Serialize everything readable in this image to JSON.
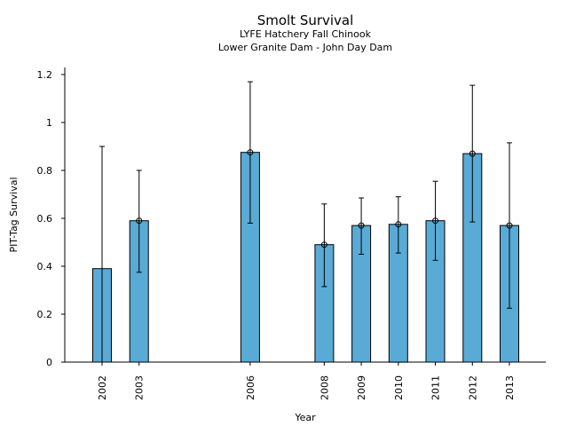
{
  "chart_data": {
    "type": "bar",
    "title": "Smolt Survival",
    "subtitle_lines": [
      "LYFE Hatchery Fall Chinook",
      "Lower Granite Dam - John Day Dam"
    ],
    "xlabel": "Year",
    "ylabel": "PIT-Tag Survival",
    "x": [
      2002,
      2003,
      2006,
      2008,
      2009,
      2010,
      2011,
      2012,
      2013
    ],
    "categories": [
      "2002",
      "2003",
      "2006",
      "2008",
      "2009",
      "2010",
      "2011",
      "2012",
      "2013"
    ],
    "values": [
      0.39,
      0.59,
      0.875,
      0.49,
      0.57,
      0.575,
      0.59,
      0.87,
      0.57
    ],
    "error_low": [
      null,
      0.375,
      0.58,
      0.315,
      0.45,
      0.455,
      0.425,
      0.585,
      0.225
    ],
    "error_high": [
      0.9,
      0.8,
      1.17,
      0.66,
      0.685,
      0.69,
      0.755,
      1.155,
      0.915
    ],
    "point_marker": [
      false,
      true,
      true,
      true,
      true,
      true,
      true,
      true,
      true
    ],
    "ylim": [
      0,
      1.2
    ],
    "yticks": [
      "0",
      "0.2",
      "0.4",
      "0.6",
      "0.8",
      "1",
      "1.2"
    ],
    "ytick_values": [
      0,
      0.2,
      0.4,
      0.6,
      0.8,
      1.0,
      1.2
    ],
    "bar_color": "#5aaad6",
    "grid": false,
    "legend": "none"
  }
}
